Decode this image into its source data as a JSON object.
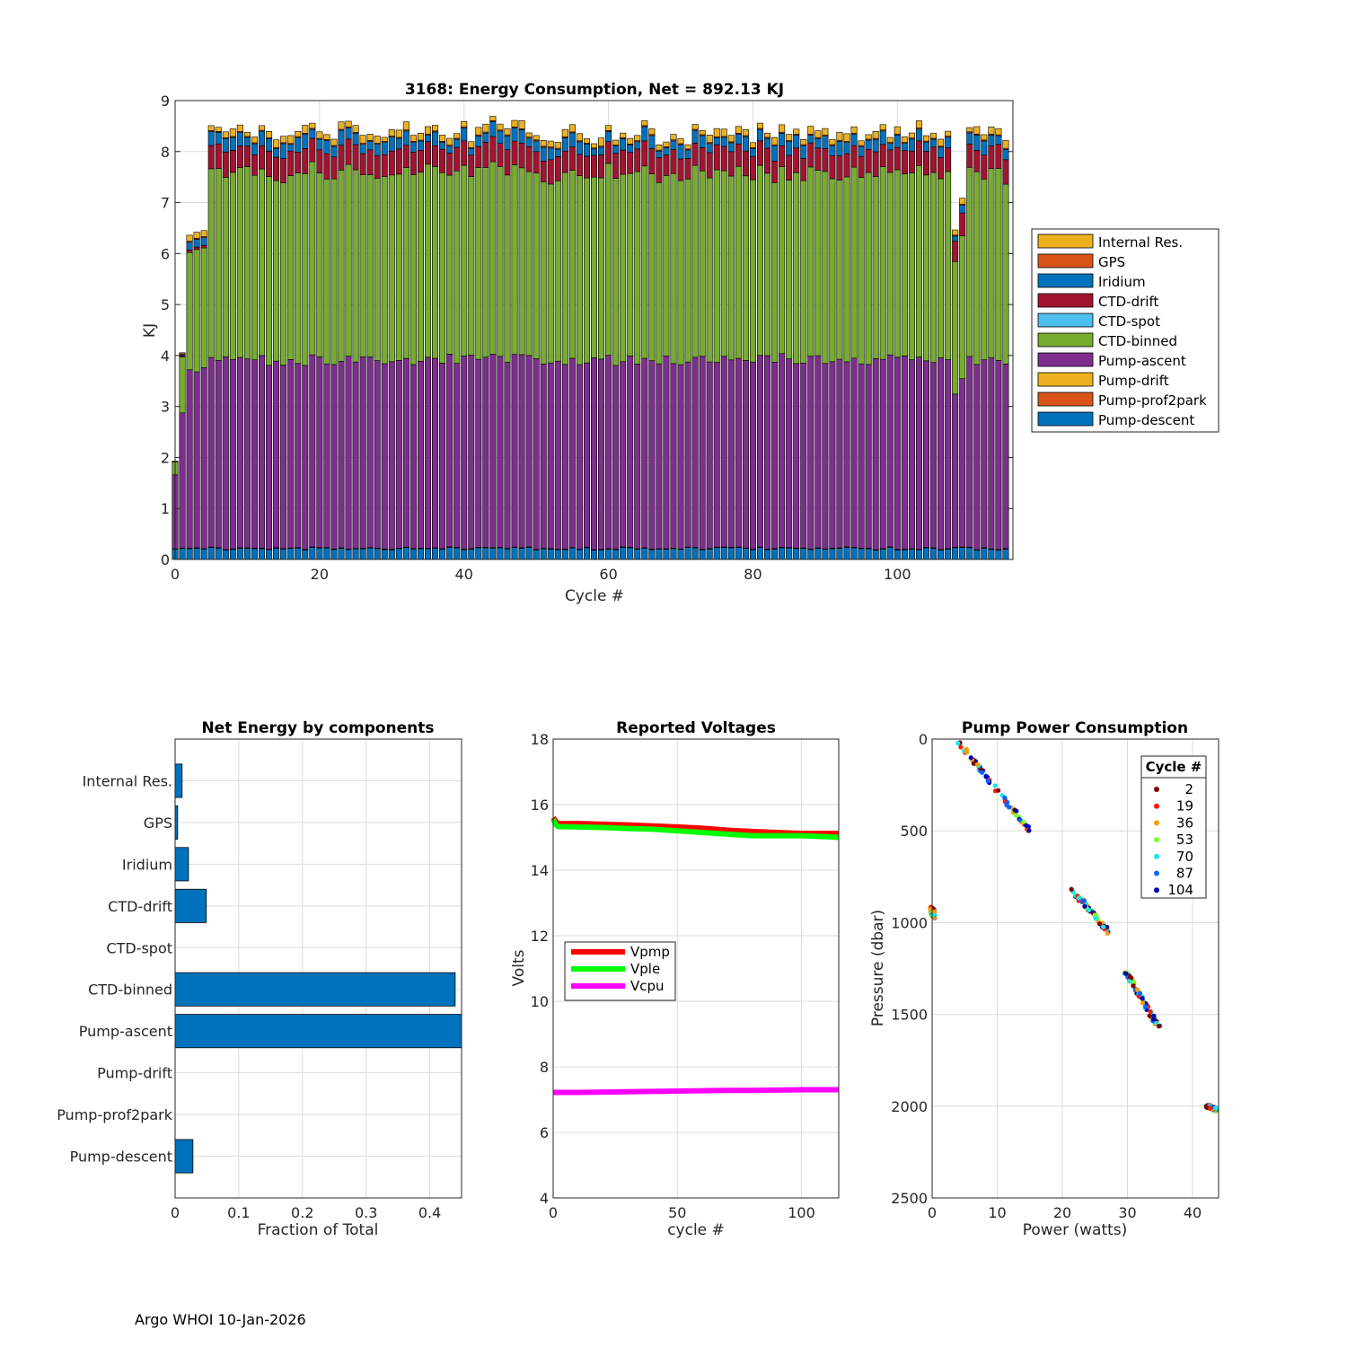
{
  "footer": "Argo WHOI 10-Jan-2026",
  "colors": {
    "Internal Res.": "#EDB120",
    "GPS": "#D95319",
    "Iridium": "#0072BD",
    "CTD-drift": "#A2142F",
    "CTD-spot": "#4DBEEE",
    "CTD-binned": "#77AC30",
    "Pump-ascent": "#7E2F8E",
    "Pump-drift": "#EDB120",
    "Pump-prof2park": "#D95319",
    "Pump-descent": "#0072BD",
    "barh": "#0072BD",
    "Vpmp": "#FF0000",
    "Vple": "#00FF00",
    "Vcpu": "#FF00FF"
  },
  "chart_data": [
    {
      "id": "energy",
      "type": "bar",
      "stacked": true,
      "title": "3168: Energy Consumption,  Net = 892.13 KJ",
      "xlabel": "Cycle #",
      "ylabel": "KJ",
      "xlim": [
        0,
        116
      ],
      "ylim": [
        0,
        9
      ],
      "xticks": [
        0,
        20,
        40,
        60,
        80,
        100
      ],
      "yticks": [
        0,
        1,
        2,
        3,
        4,
        5,
        6,
        7,
        8,
        9
      ],
      "legend": [
        "Internal Res.",
        "GPS",
        "Iridium",
        "CTD-drift",
        "CTD-spot",
        "CTD-binned",
        "Pump-ascent",
        "Pump-drift",
        "Pump-prof2park",
        "Pump-descent"
      ],
      "legend_location": "right",
      "cycles": {
        "first": 0,
        "last": 115
      },
      "typical_components": {
        "Pump-descent": 0.2,
        "Pump-prof2park": 0.01,
        "Pump-drift": 0.0,
        "CTD-spot": 0.0,
        "GPS": 0.02,
        "Internal Res.": 0.12
      },
      "special_cycles": {
        "0": {
          "Pump-descent": 0.2,
          "Pump-ascent": 1.45,
          "CTD-binned": 0.25,
          "CTD-drift": 0.0,
          "Iridium": 0.0,
          "Internal Res.": 0.0
        },
        "1": {
          "Pump-ascent": 2.65,
          "CTD-binned": 1.1,
          "CTD-drift": 0.02,
          "Iridium": 0.02,
          "Internal Res.": 0.02
        },
        "2": {
          "Pump-ascent": 3.5,
          "CTD-binned": 2.3,
          "CTD-drift": 0.05,
          "Iridium": 0.15,
          "Internal Res.": 0.12
        },
        "3": {
          "Pump-ascent": 3.45,
          "CTD-binned": 2.4,
          "CTD-drift": 0.05,
          "Iridium": 0.15,
          "Internal Res.": 0.12
        },
        "4": {
          "Pump-ascent": 3.55,
          "CTD-binned": 2.35,
          "CTD-drift": 0.05,
          "Iridium": 0.15,
          "Internal Res.": 0.12
        },
        "108": {
          "Pump-ascent": 3.0,
          "CTD-binned": 2.6,
          "CTD-drift": 0.4,
          "Iridium": 0.1,
          "Internal Res.": 0.1
        },
        "109": {
          "Pump-ascent": 3.3,
          "CTD-binned": 2.8,
          "CTD-drift": 0.45,
          "Iridium": 0.15,
          "Internal Res.": 0.12
        }
      },
      "ascent_range": [
        3.8,
        4.0
      ],
      "binned_range": [
        3.5,
        3.8
      ],
      "drift_range": [
        0.4,
        0.5
      ],
      "iridium_range": [
        0.12,
        0.3
      ]
    },
    {
      "id": "components",
      "type": "bar",
      "orientation": "horizontal",
      "title": "Net Energy by components",
      "xlabel": "Fraction of Total",
      "xlim": [
        0,
        0.45
      ],
      "xticks": [
        0,
        0.1,
        0.2,
        0.3,
        0.4
      ],
      "categories": [
        "Internal Res.",
        "GPS",
        "Iridium",
        "CTD-drift",
        "CTD-spot",
        "CTD-binned",
        "Pump-ascent",
        "Pump-drift",
        "Pump-prof2park",
        "Pump-descent"
      ],
      "values": [
        0.011,
        0.004,
        0.021,
        0.049,
        0.0,
        0.44,
        0.46,
        0.0,
        0.0,
        0.028
      ]
    },
    {
      "id": "voltages",
      "type": "line",
      "title": "Reported Voltages",
      "xlabel": "cycle #",
      "ylabel": "Volts",
      "xlim": [
        0,
        115
      ],
      "ylim": [
        4,
        18
      ],
      "xticks": [
        0,
        50,
        100
      ],
      "yticks": [
        4,
        6,
        8,
        10,
        12,
        14,
        16,
        18
      ],
      "legend_location": "middle-left",
      "series": [
        {
          "name": "Vpmp",
          "x": [
            0,
            1,
            2,
            10,
            20,
            30,
            40,
            50,
            60,
            70,
            80,
            90,
            100,
            110,
            115
          ],
          "y": [
            15.6,
            15.5,
            15.42,
            15.42,
            15.4,
            15.38,
            15.35,
            15.32,
            15.28,
            15.22,
            15.18,
            15.15,
            15.12,
            15.12,
            15.12
          ]
        },
        {
          "name": "Vple",
          "x": [
            0,
            1,
            2,
            10,
            20,
            30,
            40,
            50,
            60,
            70,
            80,
            90,
            100,
            110,
            115
          ],
          "y": [
            15.55,
            15.4,
            15.33,
            15.32,
            15.3,
            15.27,
            15.25,
            15.2,
            15.15,
            15.1,
            15.05,
            15.05,
            15.05,
            15.02,
            15.0
          ]
        },
        {
          "name": "Vcpu",
          "x": [
            0,
            10,
            20,
            30,
            40,
            50,
            60,
            70,
            80,
            90,
            100,
            110,
            115
          ],
          "y": [
            7.22,
            7.22,
            7.23,
            7.24,
            7.25,
            7.26,
            7.27,
            7.28,
            7.28,
            7.29,
            7.3,
            7.3,
            7.3
          ]
        }
      ]
    },
    {
      "id": "pump",
      "type": "scatter",
      "title": "Pump Power Consumption",
      "xlabel": "Power (watts)",
      "ylabel": "Pressure (dbar)",
      "xlim": [
        0,
        44
      ],
      "ylim": [
        0,
        2500
      ],
      "y_reversed": true,
      "xticks": [
        0,
        10,
        20,
        30,
        40
      ],
      "yticks": [
        0,
        500,
        1000,
        1500,
        2000,
        2500
      ],
      "legend_title": "Cycle #",
      "legend_location": "top-right",
      "legend": [
        {
          "label": "2",
          "color": "#800000"
        },
        {
          "label": "19",
          "color": "#FF1A00"
        },
        {
          "label": "36",
          "color": "#FF9900"
        },
        {
          "label": "53",
          "color": "#80FF33"
        },
        {
          "label": "70",
          "color": "#1AE6E6"
        },
        {
          "label": "87",
          "color": "#0066FF"
        },
        {
          "label": "104",
          "color": "#0000B3"
        }
      ],
      "clusters": [
        {
          "x0": 3.6,
          "y0": 0,
          "x1": 15.2,
          "y1": 510
        },
        {
          "x0": 21.3,
          "y0": 815,
          "x1": 27.2,
          "y1": 1055
        },
        {
          "x0": 29.8,
          "y0": 1270,
          "x1": 34.8,
          "y1": 1570
        },
        {
          "x0": 42.3,
          "y0": 2000,
          "x1": 43.6,
          "y1": 2020
        },
        {
          "x0": 0.0,
          "y0": 920,
          "x1": 0.2,
          "y1": 970
        }
      ]
    }
  ]
}
